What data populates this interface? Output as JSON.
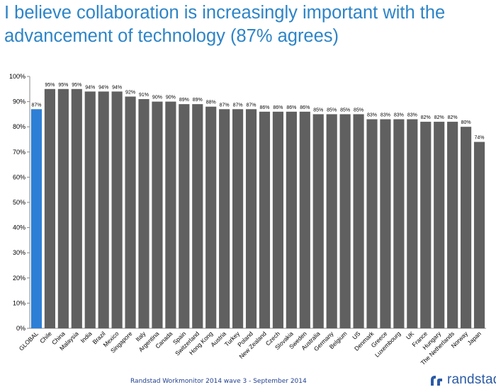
{
  "title": "I believe collaboration is increasingly important with the advancement of technology (87% agrees)",
  "footer": "Randstad Workmonitor 2014 wave 3  - September 2014",
  "logo": {
    "text": "randstad",
    "icon": "randstad-logo-icon"
  },
  "colors": {
    "title": "#2d84c7",
    "highlight_bar": "#2d7fd6",
    "bar": "#606060",
    "footer": "#1f3f8f",
    "logo": "#2a5aa6"
  },
  "chart_data": {
    "type": "bar",
    "title": "I believe collaboration is increasingly important with the advancement of technology (87% agrees)",
    "xlabel": "",
    "ylabel": "",
    "ylim": [
      0,
      100
    ],
    "yticks": [
      "0%",
      "10%",
      "20%",
      "30%",
      "40%",
      "50%",
      "60%",
      "70%",
      "80%",
      "90%",
      "100%"
    ],
    "grid": false,
    "legend": "none",
    "highlight_category": "GLOBAL",
    "categories": [
      "GLOBAL",
      "Chile",
      "China",
      "Malaysia",
      "India",
      "Brazil",
      "Mexico",
      "Singapore",
      "Italy",
      "Argentina",
      "Canada",
      "Spain",
      "Switzerland",
      "Hong Kong",
      "Austria",
      "Turkey",
      "Poland",
      "New Zealand",
      "Czech",
      "Slovakia",
      "Sweden",
      "Australia",
      "Germany",
      "Belgium",
      "US",
      "Denmark",
      "Greece",
      "Luxembourg",
      "UK",
      "France",
      "Hungary",
      "The Netherlands",
      "Norway",
      "Japan"
    ],
    "values": [
      87,
      95,
      95,
      95,
      94,
      94,
      94,
      92,
      91,
      90,
      90,
      89,
      89,
      88,
      87,
      87,
      87,
      86,
      86,
      86,
      86,
      85,
      85,
      85,
      85,
      83,
      83,
      83,
      83,
      82,
      82,
      82,
      80,
      74
    ],
    "value_labels": [
      "87%",
      "95%",
      "95%",
      "95%",
      "94%",
      "94%",
      "94%",
      "92%",
      "91%",
      "90%",
      "90%",
      "89%",
      "89%",
      "88%",
      "87%",
      "87%",
      "87%",
      "86%",
      "86%",
      "86%",
      "86%",
      "85%",
      "85%",
      "85%",
      "85%",
      "83%",
      "83%",
      "83%",
      "83%",
      "82%",
      "82%",
      "82%",
      "80%",
      "74%"
    ]
  }
}
